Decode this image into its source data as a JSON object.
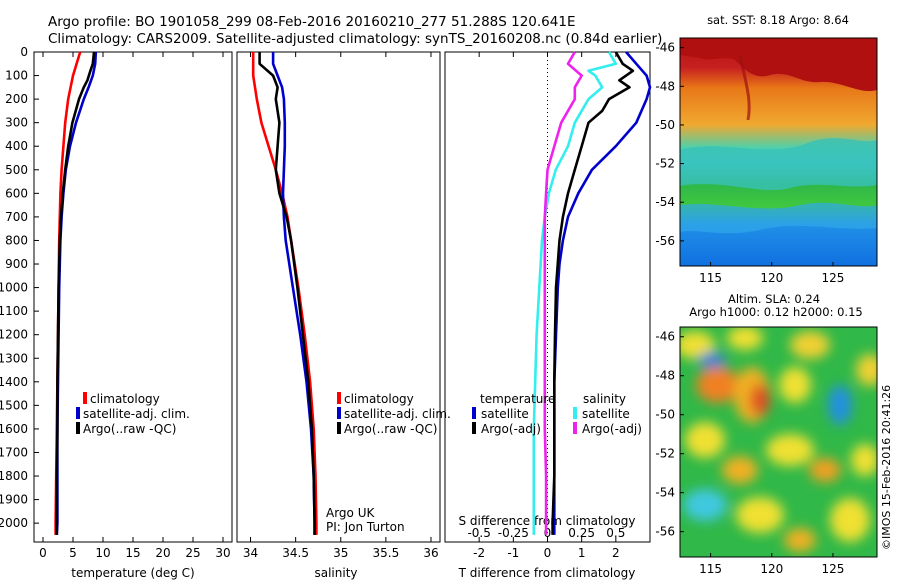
{
  "header": {
    "line1": "Argo profile: BO 1901058_299 08-Feb-2016 20160210_277 51.288S 120.641E",
    "line2": "Climatology: CARS2009. Satellite-adjusted climatology: synTS_20160208.nc (0.84d earlier)"
  },
  "side_label": "©IMOS 15-Feb-2016 20:41:26",
  "colors": {
    "red": "#ff0000",
    "blue": "#0000cc",
    "black": "#000000",
    "cyan": "#33eeee",
    "magenta": "#ee22ee"
  },
  "chart_data": [
    {
      "type": "line",
      "id": "temperature",
      "xlabel": "temperature (deg C)",
      "ylabel": "",
      "xlim": [
        -1.5,
        31.5
      ],
      "ylim": [
        2080,
        0
      ],
      "xticks": [
        0,
        5,
        10,
        15,
        20,
        25,
        30
      ],
      "yticks": [
        0,
        100,
        200,
        300,
        400,
        500,
        600,
        700,
        800,
        900,
        1000,
        1100,
        1200,
        1300,
        1400,
        1500,
        1600,
        1700,
        1800,
        1900,
        2000
      ],
      "legend": [
        "climatology",
        "satellite-adj. clim.",
        "Argo(..raw -QC)"
      ],
      "series": [
        {
          "name": "climatology",
          "color": "#ff0000",
          "depth": [
            0,
            50,
            100,
            150,
            200,
            300,
            400,
            500,
            600,
            700,
            800,
            1000,
            1200,
            1400,
            1600,
            1800,
            2000,
            2050
          ],
          "values": [
            6.2,
            5.6,
            5.0,
            4.6,
            4.2,
            3.7,
            3.4,
            3.1,
            2.9,
            2.8,
            2.7,
            2.6,
            2.5,
            2.4,
            2.3,
            2.2,
            2.1,
            2.1
          ]
        },
        {
          "name": "satellite-adj. clim.",
          "color": "#0000cc",
          "depth": [
            0,
            50,
            100,
            150,
            200,
            300,
            400,
            500,
            600,
            700,
            800,
            1000,
            1200,
            1400,
            1600,
            1800,
            2000,
            2050
          ],
          "values": [
            8.8,
            8.7,
            8.3,
            7.6,
            6.8,
            5.5,
            4.5,
            3.8,
            3.4,
            3.1,
            2.9,
            2.7,
            2.6,
            2.5,
            2.4,
            2.4,
            2.4,
            2.3
          ]
        },
        {
          "name": "Argo(..raw -QC)",
          "color": "#000000",
          "depth": [
            0,
            50,
            80,
            120,
            150,
            200,
            300,
            400,
            500,
            600,
            700,
            800,
            1000,
            1200,
            1400,
            1600,
            1800,
            2000,
            2050
          ],
          "values": [
            8.5,
            8.3,
            7.9,
            7.4,
            6.8,
            6.0,
            4.9,
            4.2,
            3.7,
            3.3,
            3.0,
            2.8,
            2.6,
            2.5,
            2.4,
            2.4,
            2.3,
            2.3,
            2.3
          ]
        }
      ]
    },
    {
      "type": "line",
      "id": "salinity",
      "xlabel": "salinity",
      "ylabel": "",
      "xlim": [
        33.85,
        36.1
      ],
      "ylim": [
        2080,
        0
      ],
      "xticks": [
        34,
        34.5,
        35,
        35.5,
        36
      ],
      "legend": [
        "climatology",
        "satellite-adj. clim.",
        "Argo(..raw -QC)"
      ],
      "annotations": [
        "Argo UK",
        "PI: Jon Turton"
      ],
      "series": [
        {
          "name": "climatology",
          "color": "#ff0000",
          "depth": [
            0,
            100,
            200,
            300,
            400,
            500,
            600,
            700,
            800,
            1000,
            1200,
            1400,
            1600,
            1800,
            2000,
            2050
          ],
          "values": [
            34.03,
            34.03,
            34.07,
            34.12,
            34.2,
            34.28,
            34.35,
            34.41,
            34.45,
            34.53,
            34.6,
            34.66,
            34.7,
            34.72,
            34.73,
            34.73
          ]
        },
        {
          "name": "satellite-adj. clim.",
          "color": "#0000cc",
          "depth": [
            0,
            50,
            100,
            150,
            200,
            300,
            400,
            500,
            600,
            700,
            800,
            1000,
            1200,
            1400,
            1600,
            1800,
            2000,
            2050
          ],
          "values": [
            34.25,
            34.25,
            34.3,
            34.35,
            34.37,
            34.38,
            34.38,
            34.37,
            34.36,
            34.37,
            34.39,
            34.47,
            34.55,
            34.62,
            34.67,
            34.7,
            34.71,
            34.71
          ]
        },
        {
          "name": "Argo(..raw -QC)",
          "color": "#000000",
          "depth": [
            0,
            50,
            100,
            150,
            200,
            300,
            400,
            500,
            600,
            700,
            800,
            1000,
            1200,
            1400,
            1600,
            1800,
            2000,
            2050
          ],
          "values": [
            34.1,
            34.1,
            34.25,
            34.3,
            34.28,
            34.32,
            34.3,
            34.28,
            34.32,
            34.4,
            34.45,
            34.52,
            34.58,
            34.64,
            34.68,
            34.7,
            34.71,
            34.71
          ]
        }
      ]
    },
    {
      "type": "line",
      "id": "difference",
      "xlabel": "T difference from climatology",
      "ylabel": "",
      "xlim": [
        -3.0,
        3.0
      ],
      "ylim": [
        2080,
        0
      ],
      "xticks": [
        -2,
        -1,
        0,
        1,
        2
      ],
      "top_axis_label": "S difference from climatology",
      "top_ticks": [
        -0.5,
        -0.25,
        0,
        0.25,
        0.5
      ],
      "legend_titles": [
        "temperature",
        "salinity"
      ],
      "legend": [
        "satellite",
        "Argo(-adj)",
        "satellite",
        "Argo(-adj)"
      ],
      "series": [
        {
          "name": "temperature satellite",
          "color": "#0000cc",
          "depth": [
            0,
            50,
            100,
            150,
            200,
            300,
            400,
            500,
            600,
            700,
            800,
            900,
            1000,
            1200,
            1400,
            1600,
            1800,
            2000,
            2050
          ],
          "values": [
            2.3,
            2.6,
            2.9,
            3.0,
            2.9,
            2.6,
            2.0,
            1.3,
            0.9,
            0.6,
            0.45,
            0.35,
            0.3,
            0.25,
            0.2,
            0.2,
            0.2,
            0.2,
            0.2
          ]
        },
        {
          "name": "temperature Argo(-adj)",
          "color": "#000000",
          "depth": [
            0,
            50,
            80,
            120,
            150,
            200,
            250,
            300,
            400,
            500,
            600,
            700,
            800,
            1000,
            1200,
            1400,
            1600,
            1800,
            2000,
            2050
          ],
          "values": [
            2.0,
            2.2,
            2.5,
            2.1,
            2.4,
            1.8,
            1.6,
            1.2,
            1.0,
            0.8,
            0.6,
            0.45,
            0.35,
            0.25,
            0.22,
            0.2,
            0.2,
            0.2,
            0.15,
            0.15
          ]
        },
        {
          "name": "salinity satellite",
          "color": "#33eeee",
          "depth": [
            0,
            50,
            80,
            100,
            150,
            200,
            300,
            400,
            500,
            600,
            700,
            800,
            1000,
            1200,
            1400,
            1600,
            1800,
            2000,
            2050
          ],
          "values": [
            0.45,
            0.5,
            0.3,
            0.35,
            0.4,
            0.3,
            0.2,
            0.15,
            0.06,
            0.01,
            -0.02,
            -0.04,
            -0.06,
            -0.08,
            -0.09,
            -0.1,
            -0.1,
            -0.1,
            -0.1
          ]
        },
        {
          "name": "salinity Argo(-adj)",
          "color": "#ee22ee",
          "depth": [
            0,
            50,
            100,
            150,
            200,
            300,
            400,
            500,
            600,
            700,
            800,
            1000,
            1200,
            1400,
            1600,
            1800,
            2000,
            2050
          ],
          "values": [
            0.2,
            0.15,
            0.25,
            0.2,
            0.2,
            0.1,
            0.05,
            0.0,
            -0.01,
            -0.02,
            -0.02,
            -0.02,
            -0.02,
            -0.02,
            -0.02,
            -0.01,
            -0.01,
            -0.01
          ]
        }
      ]
    },
    {
      "type": "heatmap",
      "id": "sst_map",
      "title": "sat. SST: 8.18 Argo: 8.64",
      "xticks": [
        115,
        120,
        125
      ],
      "yticks": [
        -46,
        -48,
        -50,
        -52,
        -54,
        -56
      ],
      "xlim": [
        112.5,
        128.6
      ],
      "ylim": [
        -57.3,
        -45.5
      ]
    },
    {
      "type": "heatmap",
      "id": "sla_map",
      "title": "Altim. SLA: 0.24",
      "subtitle": "Argo h1000: 0.12 h2000: 0.15",
      "xticks": [
        115,
        120,
        125
      ],
      "yticks": [
        -46,
        -48,
        -50,
        -52,
        -54,
        -56
      ],
      "xlim": [
        112.5,
        128.6
      ],
      "ylim": [
        -57.3,
        -45.5
      ]
    }
  ]
}
